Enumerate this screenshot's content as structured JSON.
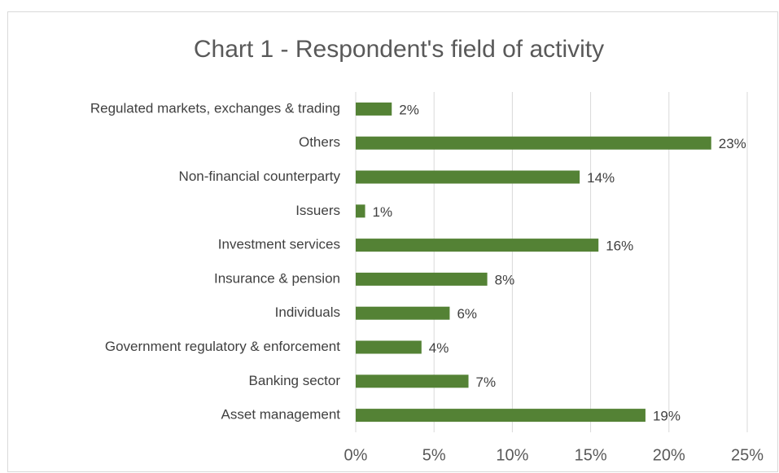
{
  "chart_data": {
    "type": "barh",
    "title": "Chart 1 - Respondent's field of activity",
    "categories": [
      "Regulated markets, exchanges & trading",
      "Others",
      "Non-financial counterparty",
      "Issuers",
      "Investment services",
      "Insurance & pension",
      "Individuals",
      "Government regulatory & enforcement",
      "Banking sector",
      "Asset management"
    ],
    "values": [
      2.3,
      22.7,
      14.3,
      0.6,
      15.5,
      8.4,
      6.0,
      4.2,
      7.2,
      18.5
    ],
    "value_labels": [
      "2%",
      "23%",
      "14%",
      "1%",
      "16%",
      "8%",
      "6%",
      "4%",
      "7%",
      "19%"
    ],
    "color": "#548235",
    "xlim": [
      0,
      25
    ],
    "xticks": [
      {
        "value": 0,
        "label": "0%"
      },
      {
        "value": 5,
        "label": "5%"
      },
      {
        "value": 10,
        "label": "10%"
      },
      {
        "value": 15,
        "label": "15%"
      },
      {
        "value": 20,
        "label": "20%"
      },
      {
        "value": 25,
        "label": "25%"
      }
    ],
    "grid": true
  }
}
